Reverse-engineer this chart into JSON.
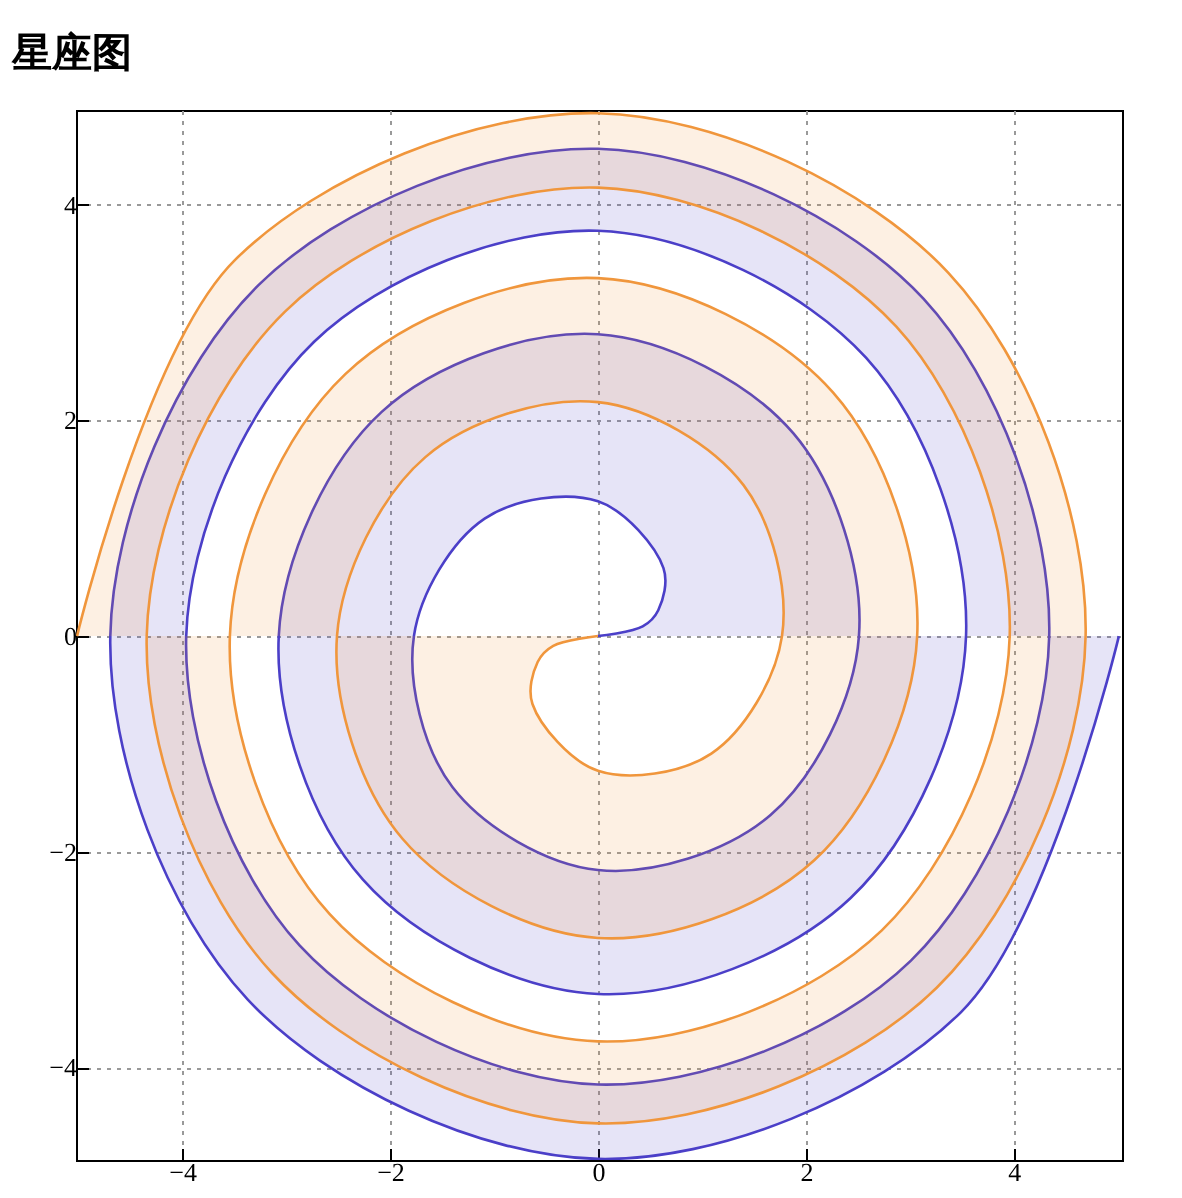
{
  "chart_data": {
    "type": "area",
    "title": "星座图",
    "xlim": [
      -5.02,
      5.04
    ],
    "ylim": [
      -4.86,
      4.88
    ],
    "xticks": [
      -4,
      -2,
      0,
      2,
      4
    ],
    "yticks": [
      -4,
      -2,
      0,
      2,
      4
    ],
    "grid": true,
    "series": [
      {
        "color": "#4b3fc8",
        "x": [
          0,
          0.43,
          0.58,
          0.63,
          0,
          -1.09,
          -1.77,
          -1.4,
          0,
          1.66,
          2.51,
          1.88,
          0,
          -2.08,
          -3.07,
          -2.26,
          0,
          2.43,
          3.54,
          2.58,
          0,
          -2.73,
          -3.96,
          -2.87,
          0,
          3.01,
          4.34,
          3.13,
          0,
          -3.26,
          -4.69,
          -3.37,
          0,
          3.49,
          5.01
        ],
        "values": [
          0,
          0.09,
          0.24,
          0.63,
          1.25,
          1.09,
          0,
          -1.4,
          -2.17,
          -1.66,
          0,
          1.88,
          2.8,
          2.08,
          0,
          -2.26,
          -3.32,
          -2.43,
          0,
          2.58,
          3.76,
          2.73,
          0,
          -2.87,
          -4.16,
          -3.01,
          0,
          3.13,
          4.52,
          3.26,
          0,
          -3.37,
          -4.85,
          -3.49,
          0
        ]
      },
      {
        "color": "#f0963c",
        "x": [
          0,
          -0.43,
          -0.58,
          -0.63,
          0,
          1.09,
          1.77,
          1.4,
          0,
          -1.66,
          -2.51,
          -1.88,
          0,
          2.08,
          3.07,
          2.26,
          0,
          -2.43,
          -3.54,
          -2.58,
          0,
          2.73,
          3.96,
          2.87,
          0,
          -3.01,
          -4.34,
          -3.13,
          0,
          3.26,
          4.69,
          3.37,
          0,
          -3.49,
          -5.01
        ],
        "values": [
          0,
          -0.09,
          -0.24,
          -0.63,
          -1.25,
          -1.09,
          0,
          1.4,
          2.17,
          1.66,
          0,
          -1.88,
          -2.8,
          -2.08,
          0,
          2.26,
          3.32,
          2.43,
          0,
          -2.58,
          -3.76,
          -2.73,
          0,
          2.87,
          4.16,
          3.01,
          0,
          -3.13,
          -4.52,
          -3.26,
          0,
          3.37,
          4.85,
          3.49,
          0
        ]
      }
    ]
  }
}
